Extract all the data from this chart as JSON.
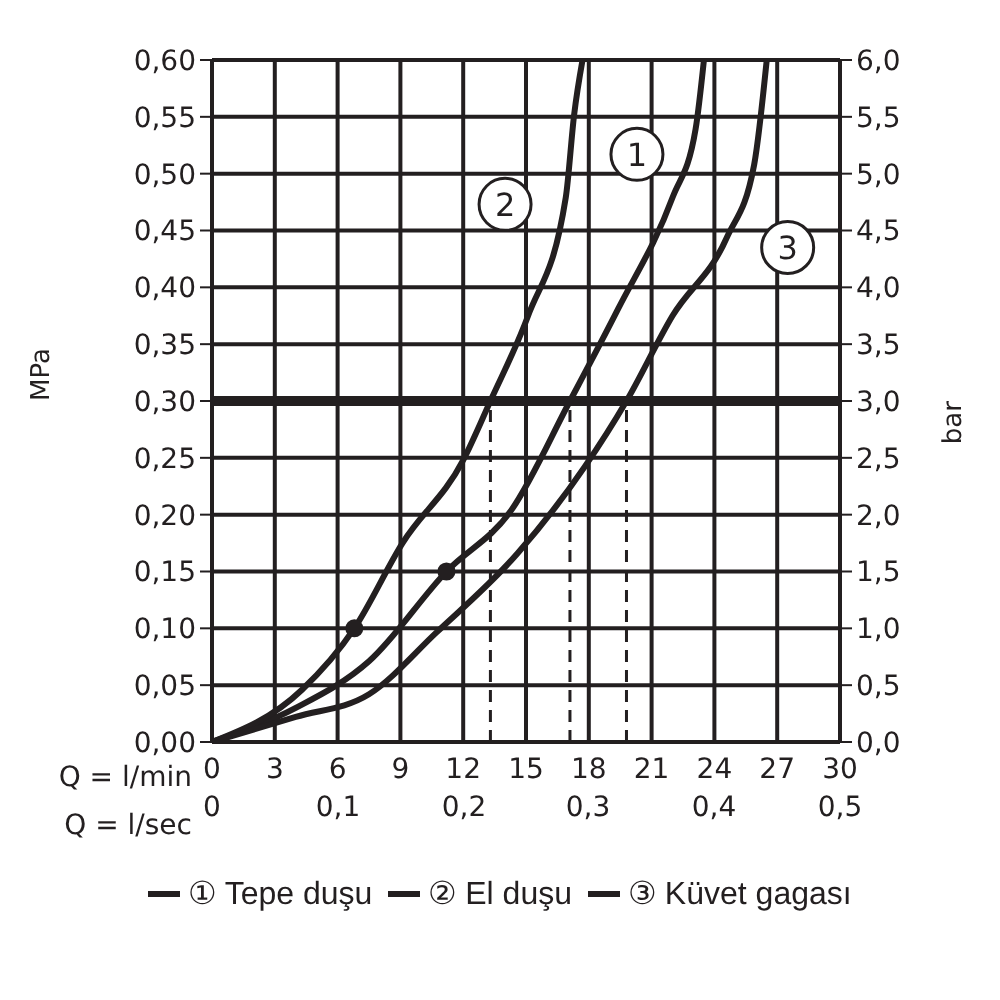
{
  "chart_data": {
    "type": "line",
    "xlabel": "Q = l/min",
    "x2label": "Q = l/sec",
    "ylabel": "MPa",
    "y2label": "bar",
    "xlim": [
      0,
      30
    ],
    "xticks": [
      0,
      3,
      6,
      9,
      12,
      15,
      18,
      21,
      24,
      27,
      30
    ],
    "x2lim": [
      0,
      0.5
    ],
    "x2ticks": [
      0,
      {
        "value": 0.1,
        "label": "0,1"
      },
      {
        "value": 0.2,
        "label": "0,2"
      },
      {
        "value": 0.3,
        "label": "0,3"
      },
      {
        "value": 0.4,
        "label": "0,4"
      },
      {
        "value": 0.5,
        "label": "0,5"
      }
    ],
    "ylim": [
      0,
      0.6
    ],
    "yticks": [
      {
        "value": 0,
        "label": "0,00"
      },
      {
        "value": 0.05,
        "label": "0,05"
      },
      {
        "value": 0.1,
        "label": "0,10"
      },
      {
        "value": 0.15,
        "label": "0,15"
      },
      {
        "value": 0.2,
        "label": "0,20"
      },
      {
        "value": 0.25,
        "label": "0,25"
      },
      {
        "value": 0.3,
        "label": "0,30"
      },
      {
        "value": 0.35,
        "label": "0,35"
      },
      {
        "value": 0.4,
        "label": "0,40"
      },
      {
        "value": 0.45,
        "label": "0,45"
      },
      {
        "value": 0.5,
        "label": "0,50"
      },
      {
        "value": 0.55,
        "label": "0,55"
      },
      {
        "value": 0.6,
        "label": "0,60"
      }
    ],
    "y2lim": [
      0,
      6
    ],
    "y2ticks": [
      {
        "value": 0,
        "label": "0,0"
      },
      {
        "value": 0.5,
        "label": "0,5"
      },
      {
        "value": 1,
        "label": "1,0"
      },
      {
        "value": 1.5,
        "label": "1,5"
      },
      {
        "value": 2,
        "label": "2,0"
      },
      {
        "value": 2.5,
        "label": "2,5"
      },
      {
        "value": 3,
        "label": "3,0"
      },
      {
        "value": 3.5,
        "label": "3,5"
      },
      {
        "value": 4,
        "label": "4,0"
      },
      {
        "value": 4.5,
        "label": "4,5"
      },
      {
        "value": 5,
        "label": "5,0"
      },
      {
        "value": 5.5,
        "label": "5,5"
      },
      {
        "value": 6,
        "label": "6,0"
      }
    ],
    "grid": true,
    "legend": "bottom",
    "marker": "none",
    "line_style": "solid",
    "series": [
      {
        "name": "① Tepe duşu",
        "color": "#231f20",
        "x": [
          0,
          4,
          7.5,
          11.2,
          14.3,
          17.1,
          19.4,
          22.0,
          23.1,
          23.5
        ],
        "values": [
          0,
          0.03,
          0.071,
          0.15,
          0.204,
          0.3,
          0.381,
          0.479,
          0.539,
          0.6
        ]
      },
      {
        "name": "② El duşu",
        "color": "#231f20",
        "x": [
          0,
          4.3,
          6.8,
          9.1,
          12.0,
          13.3,
          15.1,
          16.9,
          17.3,
          17.7
        ],
        "values": [
          0,
          0.046,
          0.1,
          0.175,
          0.248,
          0.3,
          0.375,
          0.479,
          0.552,
          0.6
        ]
      },
      {
        "name": "③ Küvet gagası",
        "color": "#231f20",
        "x": [
          0,
          4,
          7.5,
          10.7,
          14.6,
          17.8,
          19.8,
          22.0,
          24.6,
          25.9,
          26.5
        ],
        "values": [
          0,
          0.022,
          0.042,
          0.096,
          0.166,
          0.242,
          0.3,
          0.375,
          0.444,
          0.508,
          0.6
        ]
      },
      {
        "type": "scatter",
        "marker": "circle",
        "color": "#231f20",
        "x": [
          6.8,
          11.2
        ],
        "values": [
          0.1,
          0.15
        ]
      }
    ],
    "ref_lines": [
      {
        "axis": "y",
        "value": 0.3,
        "color": "#231f20",
        "line_style": "solid"
      },
      {
        "axis": "x",
        "value": 13.3,
        "color": "#231f20",
        "line_style": "dashed"
      },
      {
        "axis": "x",
        "value": 17.1,
        "color": "#231f20",
        "line_style": "dashed"
      },
      {
        "axis": "x",
        "value": 19.8,
        "color": "#231f20",
        "line_style": "dashed"
      }
    ],
    "annotations": [
      {
        "text": "1",
        "x": 20.3,
        "y": 0.517
      },
      {
        "text": "2",
        "x": 14.0,
        "y": 0.473
      },
      {
        "text": "3",
        "x": 27.5,
        "y": 0.435
      }
    ]
  }
}
